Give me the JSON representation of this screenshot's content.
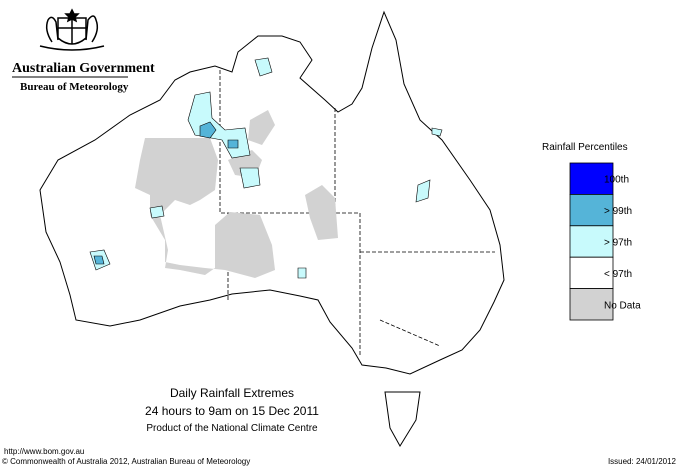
{
  "header": {
    "agency": "Australian Government",
    "bureau": "Bureau of Meteorology"
  },
  "legend": {
    "title": "Rainfall Percentiles",
    "items": [
      {
        "label": "100th",
        "color": "#0000ff"
      },
      {
        "label": "> 99th",
        "color": "#55b4d8"
      },
      {
        "label": "> 97th",
        "color": "#c8fafc"
      },
      {
        "label": "< 97th",
        "color": "#ffffff"
      },
      {
        "label": "No Data",
        "color": "#d2d2d2"
      }
    ]
  },
  "map_title": {
    "title": "Daily Rainfall Extremes",
    "period": "24 hours to 9am on 15 Dec 2011",
    "product": "Product of the National Climate Centre"
  },
  "footer": {
    "url": "http://www.bom.gov.au",
    "copyright": "© Commonwealth of Australia 2012, Australian Bureau of Meteorology",
    "issued": "Issued: 24/01/2012"
  }
}
